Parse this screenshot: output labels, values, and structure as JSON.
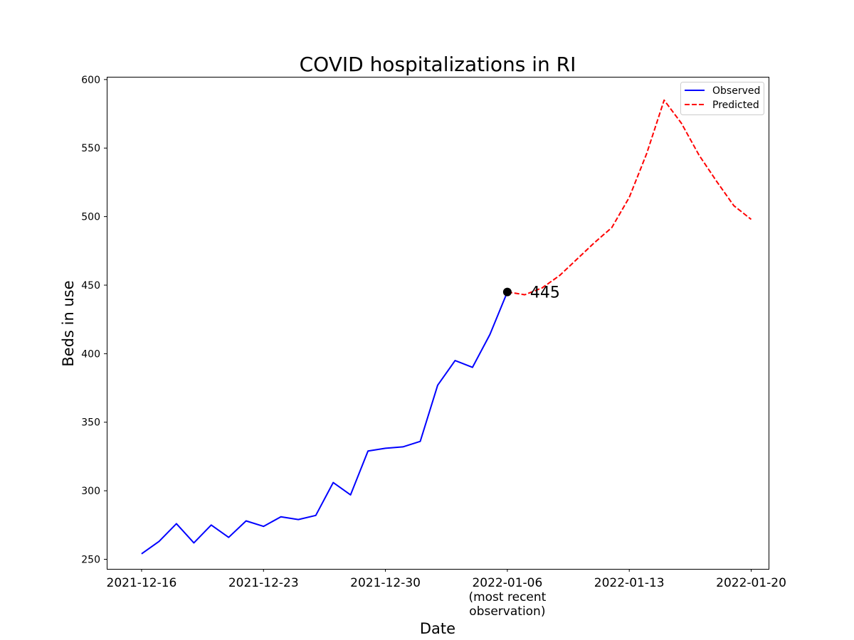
{
  "chart_data": {
    "type": "line",
    "title": "COVID hospitalizations in RI",
    "xlabel": "Date",
    "ylabel": "Beds in use",
    "ylim": [
      243,
      602
    ],
    "xlim": [
      "2021-12-14",
      "2022-01-21"
    ],
    "yticks": [
      250,
      300,
      350,
      400,
      450,
      500,
      550,
      600
    ],
    "xticks": [
      {
        "date": "2021-12-16",
        "lines": [
          "2021-12-16"
        ]
      },
      {
        "date": "2021-12-23",
        "lines": [
          "2021-12-23"
        ]
      },
      {
        "date": "2021-12-30",
        "lines": [
          "2021-12-30"
        ]
      },
      {
        "date": "2022-01-06",
        "lines": [
          "2022-01-06",
          "(most recent",
          "observation)"
        ]
      },
      {
        "date": "2022-01-13",
        "lines": [
          "2022-01-13"
        ]
      },
      {
        "date": "2022-01-20",
        "lines": [
          "2022-01-20"
        ]
      }
    ],
    "grid": false,
    "legend_position": "top-right",
    "series": [
      {
        "name": "Observed",
        "color": "#0000ff",
        "style": "solid",
        "points": [
          {
            "x": "2021-12-16",
            "y": 254
          },
          {
            "x": "2021-12-17",
            "y": 263
          },
          {
            "x": "2021-12-18",
            "y": 276
          },
          {
            "x": "2021-12-19",
            "y": 262
          },
          {
            "x": "2021-12-20",
            "y": 275
          },
          {
            "x": "2021-12-21",
            "y": 266
          },
          {
            "x": "2021-12-22",
            "y": 278
          },
          {
            "x": "2021-12-23",
            "y": 274
          },
          {
            "x": "2021-12-24",
            "y": 281
          },
          {
            "x": "2021-12-25",
            "y": 279
          },
          {
            "x": "2021-12-26",
            "y": 282
          },
          {
            "x": "2021-12-27",
            "y": 306
          },
          {
            "x": "2021-12-28",
            "y": 297
          },
          {
            "x": "2021-12-29",
            "y": 329
          },
          {
            "x": "2021-12-30",
            "y": 331
          },
          {
            "x": "2021-12-31",
            "y": 332
          },
          {
            "x": "2022-01-01",
            "y": 336
          },
          {
            "x": "2022-01-02",
            "y": 377
          },
          {
            "x": "2022-01-03",
            "y": 395
          },
          {
            "x": "2022-01-04",
            "y": 390
          },
          {
            "x": "2022-01-05",
            "y": 414
          },
          {
            "x": "2022-01-06",
            "y": 445
          }
        ]
      },
      {
        "name": "Predicted",
        "color": "#ff0000",
        "style": "dashed",
        "points": [
          {
            "x": "2022-01-06",
            "y": 445
          },
          {
            "x": "2022-01-07",
            "y": 443
          },
          {
            "x": "2022-01-08",
            "y": 448
          },
          {
            "x": "2022-01-09",
            "y": 457
          },
          {
            "x": "2022-01-10",
            "y": 469
          },
          {
            "x": "2022-01-11",
            "y": 481
          },
          {
            "x": "2022-01-12",
            "y": 492
          },
          {
            "x": "2022-01-13",
            "y": 514
          },
          {
            "x": "2022-01-14",
            "y": 546
          },
          {
            "x": "2022-01-15",
            "y": 585
          },
          {
            "x": "2022-01-16",
            "y": 568
          },
          {
            "x": "2022-01-17",
            "y": 545
          },
          {
            "x": "2022-01-18",
            "y": 526
          },
          {
            "x": "2022-01-19",
            "y": 508
          },
          {
            "x": "2022-01-20",
            "y": 498
          }
        ]
      }
    ],
    "annotation": {
      "x": "2022-01-06",
      "y": 445,
      "label": "445",
      "marker_color": "#000000"
    }
  }
}
